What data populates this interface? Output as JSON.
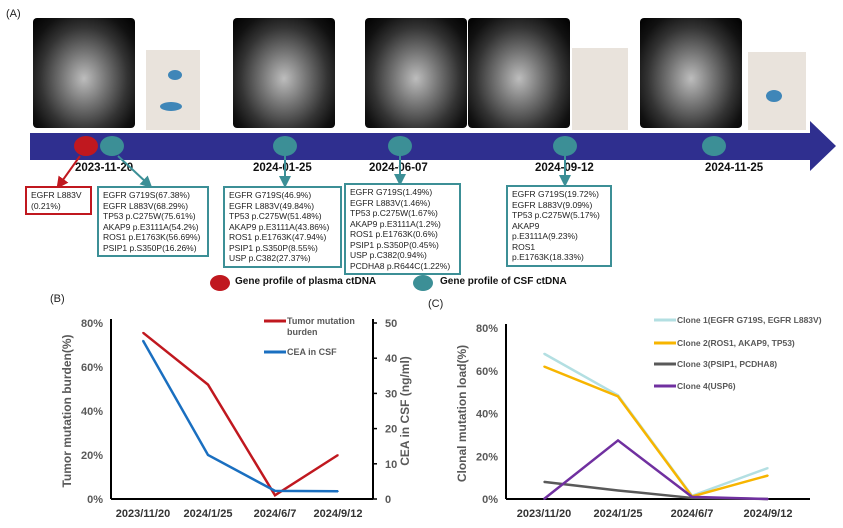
{
  "panels": {
    "a": "(A)",
    "b": "(B)",
    "c": "(C)"
  },
  "colors": {
    "timeline": "#2f2f8f",
    "plasma": "#c0181f",
    "csf": "#3c8f96"
  },
  "timeline": {
    "dates": [
      "2023-11-20",
      "2024-01-25",
      "2024-06-07",
      "2024-09-12",
      "2024-11-25"
    ],
    "plasma_box": [
      "EGFR L883V",
      "(0.21%)"
    ],
    "csf_boxes": [
      [
        "EGFR G719S(67.38%)",
        "EGFR L883V(68.29%)",
        "TP53 p.C275W(75.61%)",
        "AKAP9 p.E3111A(54.2%)",
        "ROS1 p.E1763K(56.69%)",
        "PSIP1 p.S350P(16.26%)"
      ],
      [
        "EGFR G719S(46.9%)",
        "EGFR L883V(49.84%)",
        "TP53 p.C275W(51.48%)",
        "AKAP9 p.E3111A(43.86%)",
        "ROS1 p.E1763K(47.94%)",
        "PSIP1 p.S350P(8.55%)",
        "USP p.C382(27.37%)"
      ],
      [
        "EGFR G719S(1.49%)",
        "EGFR L883V(1.46%)",
        "TP53 p.C275W(1.67%)",
        "AKAP9 p.E3111A(1.2%)",
        "ROS1 p.E1763K(0.6%)",
        "PSIP1 p.S350P(0.45%)",
        "USP p.C382(0.94%)",
        "PCDHA8 p.R644C(1.22%)"
      ],
      [
        "EGFR G719S(19.72%)",
        "EGFR L883V(9.09%)",
        "TP53 p.C275W(5.17%)",
        "AKAP9 p.E3111A(9.23%)",
        "ROS1 p.E1763K(18.33%)"
      ]
    ],
    "legend": {
      "plasma": "Gene profile  of  plasma ctDNA",
      "csf": "Gene profile  of  CSF ctDNA"
    }
  },
  "chart_data": [
    {
      "type": "line",
      "title": "",
      "categories": [
        "2023/11/20",
        "2024/1/25",
        "2024/6/7",
        "2024/9/12"
      ],
      "ylabel": "Tumor mutation burden(%)",
      "ylim": [
        0,
        80
      ],
      "yticks": [
        "0%",
        "20%",
        "40%",
        "60%",
        "80%"
      ],
      "y2label": "CEA in CSF (ng/ml)",
      "y2lim": [
        0,
        50
      ],
      "y2ticks": [
        "0",
        "10",
        "20",
        "30",
        "40",
        "50"
      ],
      "legend_position": "top-right",
      "series": [
        {
          "name": "Tumor mutation burden",
          "axis": "left",
          "color": "#c0181f",
          "values": [
            75.6,
            52,
            1.7,
            20
          ]
        },
        {
          "name": "CEA in CSF",
          "axis": "right",
          "color": "#1a6fc0",
          "values": [
            45,
            12.5,
            2.3,
            2.2
          ]
        }
      ]
    },
    {
      "type": "line",
      "title": "",
      "categories": [
        "2023/11/20",
        "2024/1/25",
        "2024/6/7",
        "2024/9/12"
      ],
      "ylabel": "Clonal mutation load(%)",
      "ylim": [
        0,
        80
      ],
      "yticks": [
        "0%",
        "20%",
        "40%",
        "60%",
        "80%"
      ],
      "legend_position": "top-right",
      "series": [
        {
          "name": "Clone 1(EGFR G719S, EGFR L883V)",
          "color": "#b3dfe2",
          "values": [
            68,
            48.5,
            1.5,
            14.5
          ]
        },
        {
          "name": "Clone 2(ROS1, AKAP9, TP53)",
          "color": "#f7b500",
          "values": [
            62,
            48,
            1.2,
            11
          ]
        },
        {
          "name": "Clone 3(PSIP1, PCDHA8)",
          "color": "#595959",
          "values": [
            8,
            4,
            0.5,
            0
          ]
        },
        {
          "name": "Clone 4(USP6)",
          "color": "#7030a0",
          "values": [
            0,
            27.4,
            1,
            0
          ]
        }
      ]
    }
  ]
}
